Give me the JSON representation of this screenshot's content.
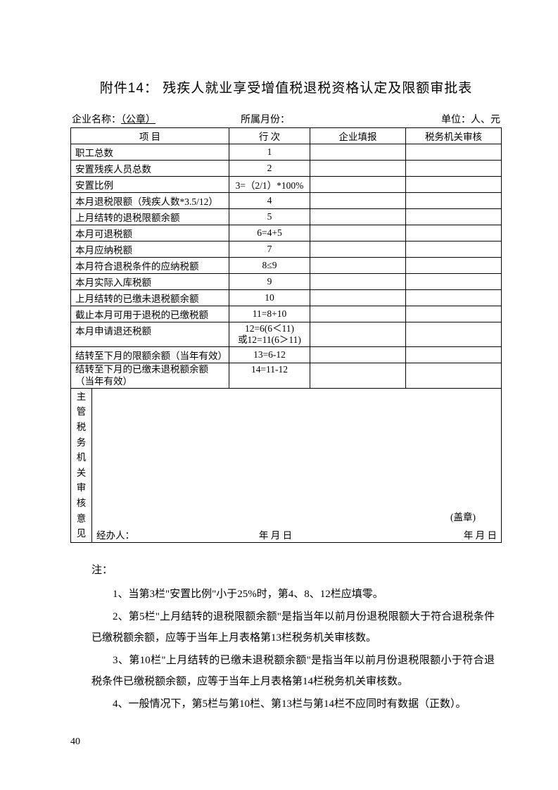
{
  "title": "附件14：  残疾人就业享受增值税退税资格认定及限额审批表",
  "meta": {
    "left_label": "企业名称：",
    "left_value": "（公章）",
    "mid_label": "所属月份：",
    "right_label": "单位：人、元"
  },
  "headers": {
    "item": "项  目",
    "line": "行  次",
    "fill1": "企业填报",
    "fill2": "税务机关审核"
  },
  "rows": [
    {
      "item": "职工总数",
      "line": "1"
    },
    {
      "item": "安置残疾人员总数",
      "line": "2"
    },
    {
      "item": "安置比例",
      "line": "3=（2/1）*100%"
    },
    {
      "item": "本月退税限额（残疾人数*3.5/12）",
      "line": "4"
    },
    {
      "item": "上月结转的退税限额余额",
      "line": "5"
    },
    {
      "item": "本月可退税额",
      "line": "6=4+5"
    },
    {
      "item": "本月应纳税额",
      "line": "7"
    },
    {
      "item": "本月符合退税条件的应纳税额",
      "line": "8≤9"
    },
    {
      "item": "本月实际入库税额",
      "line": "9"
    },
    {
      "item": "上月结转的已缴未退税额余额",
      "line": "10"
    },
    {
      "item": "截止本月可用于退税的已缴税额",
      "line": "11=8+10"
    },
    {
      "item": "本月申请退还税额",
      "line": "12=6(6＜11)\n或12=11(6＞11)",
      "twoLine": true
    },
    {
      "item": "结转至下月的限额余额（当年有效）",
      "line": "13=6-12"
    },
    {
      "item": "结转至下月的已缴未退税额余额\n（当年有效）",
      "line": "14=11-12",
      "itemTwoLine": true
    }
  ],
  "sign": {
    "side_label": "主管税务机关审核意见",
    "handler": "经办人：",
    "stamp": "(盖章)",
    "date_mid": "年      月      日",
    "date_right": "年      月      日"
  },
  "notes": {
    "title": "注：",
    "lines": [
      "1、当第3栏\"安置比例\"小于25%时，第4、8、12栏应填零。",
      "2、第5栏\"上月结转的退税限额余额\"是指当年以前月份退税限额大于符合退税条件已缴税额余额，应等于当年上月表格第13栏税务机关审核数。",
      "3、第10栏\"上月结转的已缴未退税额余额\"是指当年以前月份退税限额小于符合退税条件已缴税额余额，应等于当年上月表格第14栏税务机关审核数。",
      "4、一般情况下，第5栏与第10栏、第13栏与第14栏不应同时有数据（正数）。"
    ]
  },
  "page_number": "40"
}
